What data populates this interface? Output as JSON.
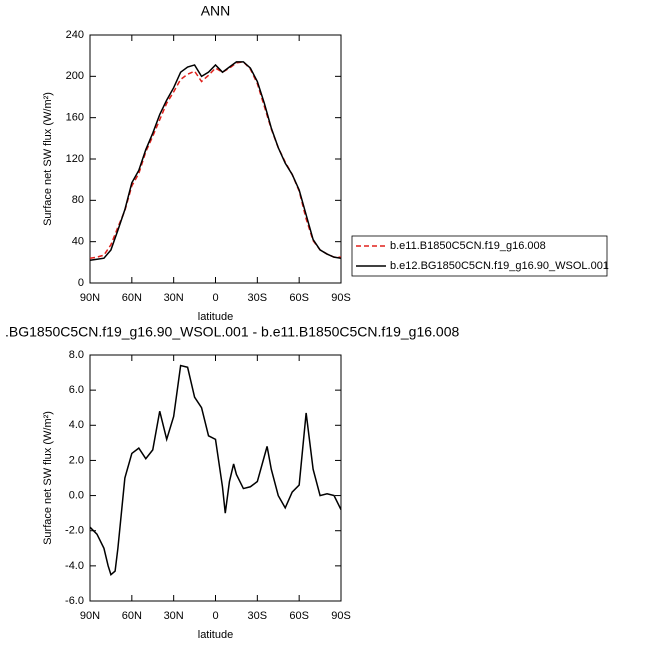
{
  "chart_data": [
    {
      "type": "line",
      "title": "ANN",
      "xlabel": "latitude",
      "ylabel": "Surface net SW flux (W/m²)",
      "x": [
        90,
        85,
        80,
        75,
        70,
        65,
        60,
        55,
        50,
        45,
        40,
        35,
        30,
        25,
        20,
        15,
        10,
        5,
        0,
        -5,
        -10,
        -15,
        -20,
        -25,
        -30,
        -35,
        -40,
        -45,
        -50,
        -55,
        -60,
        -65,
        -70,
        -75,
        -80,
        -85,
        -90
      ],
      "series": [
        {
          "name": "b.e11.B1850C5CN.f19_g16.008",
          "color": "#e0201b",
          "linestyle": "dashed",
          "values": [
            24,
            25,
            27,
            37,
            54,
            70,
            94,
            106,
            127,
            142,
            158,
            174,
            185,
            197,
            202,
            205,
            195,
            201,
            208,
            204,
            208,
            213,
            214,
            207,
            193,
            171,
            149,
            131,
            117,
            105,
            89,
            62,
            41,
            32,
            28,
            25,
            25
          ]
        },
        {
          "name": "b.e12.BG1850C5CN.f19_g16.90_WSOL.001",
          "color": "#000000",
          "linestyle": "solid",
          "values": [
            22,
            23,
            24,
            32,
            51,
            71,
            97,
            109,
            129,
            145,
            163,
            177,
            189,
            204,
            209,
            211,
            200,
            204,
            211,
            204,
            209,
            214,
            214,
            208,
            195,
            174,
            150,
            131,
            116,
            105,
            90,
            66,
            42,
            32,
            28,
            25,
            24
          ]
        }
      ],
      "xlim": [
        90,
        -90
      ],
      "xticks": [
        {
          "value": 90,
          "label": "90N"
        },
        {
          "value": 60,
          "label": "60N"
        },
        {
          "value": 30,
          "label": "30N"
        },
        0,
        {
          "value": -30,
          "label": "30S"
        },
        {
          "value": -60,
          "label": "60S"
        },
        {
          "value": -90,
          "label": "90S"
        }
      ],
      "ylim": [
        0,
        240
      ],
      "yticks": [
        0,
        40,
        80,
        120,
        160,
        200,
        240
      ],
      "legend": "right"
    },
    {
      "type": "line",
      "title": ".BG1850C5CN.f19_g16.90_WSOL.001 - b.e11.B1850C5CN.f19_g16.008",
      "xlabel": "latitude",
      "ylabel": "Surface net SW flux (W/m²)",
      "x": [
        90,
        85,
        80,
        77,
        75,
        72,
        70,
        65,
        60,
        55,
        50,
        45,
        40,
        35,
        30,
        25,
        20,
        15,
        10,
        5,
        0,
        -5,
        -7,
        -10,
        -13,
        -15,
        -20,
        -25,
        -30,
        -37,
        -40,
        -45,
        -50,
        -55,
        -60,
        -65,
        -70,
        -75,
        -80,
        -85,
        -90
      ],
      "series": [
        {
          "color": "#000000",
          "linestyle": "solid",
          "values": [
            -1.8,
            -2.2,
            -3.0,
            -4.0,
            -4.5,
            -4.3,
            -3.0,
            1.0,
            2.4,
            2.7,
            2.1,
            2.6,
            4.8,
            3.2,
            4.5,
            7.4,
            7.3,
            5.6,
            5.0,
            3.4,
            3.2,
            0.5,
            -1.0,
            0.8,
            1.8,
            1.2,
            0.4,
            0.5,
            0.8,
            2.8,
            1.5,
            0.0,
            -0.7,
            0.2,
            0.6,
            4.7,
            1.5,
            0.0,
            0.1,
            0.0,
            -0.8
          ]
        }
      ],
      "xlim": [
        90,
        -90
      ],
      "xticks": [
        {
          "value": 90,
          "label": "90N"
        },
        {
          "value": 60,
          "label": "60N"
        },
        {
          "value": 30,
          "label": "30N"
        },
        0,
        {
          "value": -30,
          "label": "30S"
        },
        {
          "value": -60,
          "label": "60S"
        },
        {
          "value": -90,
          "label": "90S"
        }
      ],
      "ylim": [
        -6,
        8
      ],
      "yticks": [
        {
          "value": -6,
          "label": "-6.0"
        },
        {
          "value": -4,
          "label": "-4.0"
        },
        {
          "value": -2,
          "label": "-2.0"
        },
        {
          "value": 0,
          "label": "0.0"
        },
        {
          "value": 2,
          "label": "2.0"
        },
        {
          "value": 4,
          "label": "4.0"
        },
        {
          "value": 6,
          "label": "6.0"
        },
        {
          "value": 8,
          "label": "8.0"
        }
      ]
    }
  ]
}
